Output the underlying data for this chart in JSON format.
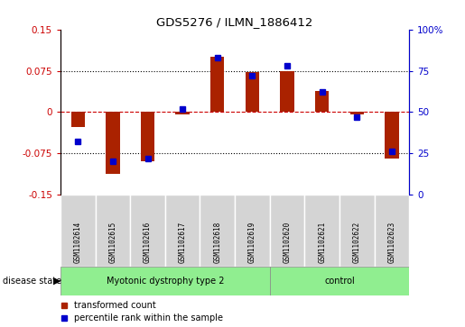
{
  "title": "GDS5276 / ILMN_1886412",
  "samples": [
    "GSM1102614",
    "GSM1102615",
    "GSM1102616",
    "GSM1102617",
    "GSM1102618",
    "GSM1102619",
    "GSM1102620",
    "GSM1102621",
    "GSM1102622",
    "GSM1102623"
  ],
  "red_values": [
    -0.028,
    -0.113,
    -0.09,
    -0.005,
    0.1,
    0.073,
    0.075,
    0.038,
    -0.005,
    -0.085
  ],
  "blue_values": [
    32,
    20,
    22,
    52,
    83,
    72,
    78,
    62,
    47,
    26
  ],
  "ylim_left": [
    -0.15,
    0.15
  ],
  "ylim_right": [
    0,
    100
  ],
  "yticks_left": [
    -0.15,
    -0.075,
    0,
    0.075,
    0.15
  ],
  "yticks_right": [
    0,
    25,
    50,
    75,
    100
  ],
  "ytick_labels_left": [
    "-0.15",
    "-0.075",
    "0",
    "0.075",
    "0.15"
  ],
  "ytick_labels_right": [
    "0",
    "25",
    "50",
    "75",
    "100%"
  ],
  "red_color": "#aa2200",
  "blue_color": "#0000cc",
  "dotted_line_color": "#000000",
  "zero_line_color": "#cc0000",
  "bar_width": 0.4,
  "groups": [
    {
      "label": "Myotonic dystrophy type 2",
      "indices": [
        0,
        1,
        2,
        3,
        4,
        5
      ],
      "color": "#90ee90"
    },
    {
      "label": "control",
      "indices": [
        6,
        7,
        8,
        9
      ],
      "color": "#90ee90"
    }
  ],
  "disease_state_label": "disease state",
  "legend_items": [
    {
      "label": "transformed count",
      "color": "#aa2200"
    },
    {
      "label": "percentile rank within the sample",
      "color": "#0000cc"
    }
  ],
  "background_color": "#ffffff",
  "plot_bg_color": "#ffffff",
  "tick_label_color_left": "#cc0000",
  "tick_label_color_right": "#0000cc",
  "sample_cell_color": "#d4d4d4",
  "sample_cell_edge_color": "#ffffff",
  "fig_width": 5.15,
  "fig_height": 3.63,
  "dpi": 100
}
